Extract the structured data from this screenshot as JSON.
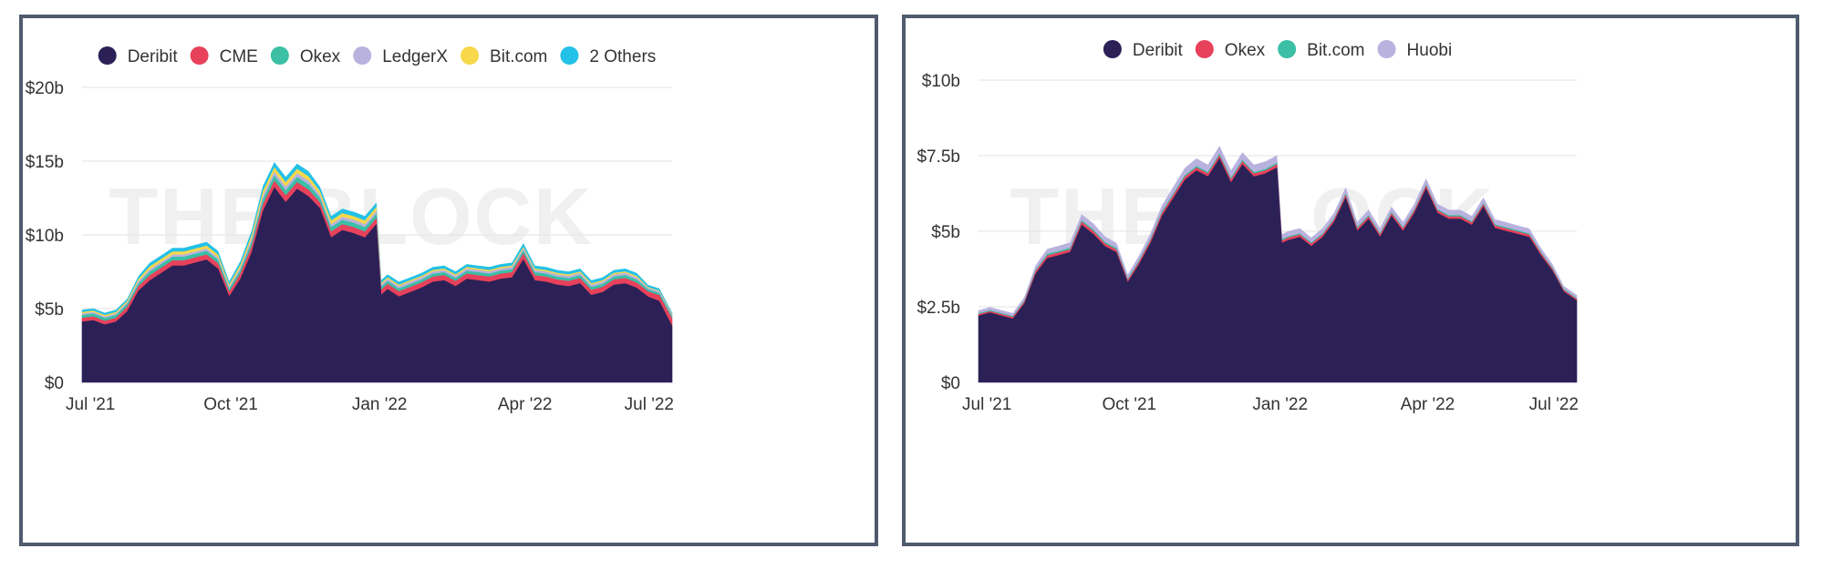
{
  "watermark": "THE BLOCK",
  "chart_data": [
    {
      "type": "area",
      "stacked": true,
      "title": "",
      "xlabel": "",
      "ylabel": "",
      "x_tick_labels": [
        "Jul '21",
        "Oct '21",
        "Jan '22",
        "Apr '22",
        "Jul '22"
      ],
      "x_tick_days": [
        0,
        92,
        184,
        274,
        365
      ],
      "y_tick_labels": [
        "$0",
        "$5b",
        "$10b",
        "$15b",
        "$20b"
      ],
      "y_tick_values": [
        0,
        5,
        10,
        15,
        20
      ],
      "ylim": [
        0,
        20
      ],
      "y_unit": "$ billions",
      "grid": true,
      "legend_position": "top-center",
      "x_days": [
        0,
        7,
        14,
        21,
        28,
        35,
        42,
        49,
        56,
        63,
        70,
        77,
        84,
        91,
        98,
        105,
        112,
        119,
        126,
        133,
        140,
        147,
        154,
        161,
        168,
        175,
        182,
        185,
        189,
        196,
        203,
        210,
        217,
        224,
        231,
        238,
        245,
        252,
        259,
        266,
        273,
        280,
        287,
        294,
        301,
        308,
        315,
        322,
        329,
        336,
        343,
        350,
        357,
        365
      ],
      "series": [
        {
          "name": "Deribit",
          "color": "#2b2157",
          "values": [
            4.1,
            4.2,
            3.9,
            4.1,
            4.8,
            6.2,
            6.9,
            7.4,
            7.9,
            7.9,
            8.1,
            8.3,
            7.7,
            5.8,
            7.0,
            8.8,
            11.6,
            13.2,
            12.2,
            13.1,
            12.6,
            11.8,
            9.8,
            10.3,
            10.1,
            9.8,
            10.7,
            5.9,
            6.3,
            5.8,
            6.1,
            6.4,
            6.8,
            6.9,
            6.5,
            7.0,
            6.9,
            6.8,
            7.0,
            7.1,
            8.3,
            6.9,
            6.8,
            6.6,
            6.5,
            6.7,
            5.9,
            6.1,
            6.6,
            6.7,
            6.4,
            5.8,
            5.5,
            3.8
          ]
        },
        {
          "name": "CME",
          "color": "#e8415b",
          "values": [
            0.25,
            0.25,
            0.25,
            0.25,
            0.3,
            0.3,
            0.35,
            0.35,
            0.35,
            0.35,
            0.35,
            0.35,
            0.35,
            0.3,
            0.35,
            0.4,
            0.45,
            0.45,
            0.45,
            0.45,
            0.45,
            0.4,
            0.4,
            0.4,
            0.4,
            0.4,
            0.4,
            0.35,
            0.35,
            0.35,
            0.35,
            0.35,
            0.35,
            0.35,
            0.35,
            0.35,
            0.35,
            0.35,
            0.35,
            0.35,
            0.4,
            0.35,
            0.35,
            0.35,
            0.35,
            0.35,
            0.35,
            0.35,
            0.35,
            0.35,
            0.35,
            0.35,
            0.4,
            0.5
          ]
        },
        {
          "name": "Okex",
          "color": "#3bbfa5",
          "values": [
            0.2,
            0.2,
            0.2,
            0.2,
            0.2,
            0.2,
            0.25,
            0.25,
            0.25,
            0.25,
            0.25,
            0.25,
            0.25,
            0.2,
            0.25,
            0.3,
            0.35,
            0.35,
            0.35,
            0.35,
            0.35,
            0.3,
            0.3,
            0.3,
            0.3,
            0.3,
            0.3,
            0.2,
            0.2,
            0.2,
            0.2,
            0.2,
            0.2,
            0.2,
            0.2,
            0.2,
            0.2,
            0.2,
            0.2,
            0.2,
            0.2,
            0.2,
            0.2,
            0.2,
            0.2,
            0.2,
            0.2,
            0.2,
            0.2,
            0.2,
            0.2,
            0.15,
            0.15,
            0.15
          ]
        },
        {
          "name": "LedgerX",
          "color": "#b9b2df",
          "values": [
            0.1,
            0.1,
            0.1,
            0.1,
            0.1,
            0.15,
            0.15,
            0.15,
            0.15,
            0.15,
            0.15,
            0.15,
            0.15,
            0.15,
            0.15,
            0.2,
            0.25,
            0.25,
            0.25,
            0.25,
            0.25,
            0.2,
            0.2,
            0.2,
            0.2,
            0.2,
            0.2,
            0.15,
            0.15,
            0.15,
            0.15,
            0.15,
            0.15,
            0.15,
            0.15,
            0.15,
            0.15,
            0.15,
            0.15,
            0.15,
            0.15,
            0.15,
            0.15,
            0.15,
            0.15,
            0.15,
            0.15,
            0.15,
            0.15,
            0.15,
            0.15,
            0.1,
            0.1,
            0.1
          ]
        },
        {
          "name": "Bit.com",
          "color": "#f6d84a",
          "values": [
            0.1,
            0.1,
            0.1,
            0.1,
            0.1,
            0.15,
            0.2,
            0.2,
            0.2,
            0.2,
            0.2,
            0.2,
            0.2,
            0.15,
            0.2,
            0.25,
            0.3,
            0.3,
            0.3,
            0.3,
            0.3,
            0.25,
            0.25,
            0.25,
            0.25,
            0.25,
            0.25,
            0.1,
            0.1,
            0.1,
            0.1,
            0.1,
            0.1,
            0.1,
            0.1,
            0.1,
            0.1,
            0.1,
            0.1,
            0.1,
            0.1,
            0.1,
            0.1,
            0.1,
            0.1,
            0.1,
            0.1,
            0.1,
            0.1,
            0.1,
            0.1,
            0.05,
            0.05,
            0.05
          ]
        },
        {
          "name": "2 Others",
          "color": "#23c1e8",
          "values": [
            0.15,
            0.15,
            0.15,
            0.15,
            0.15,
            0.2,
            0.25,
            0.25,
            0.25,
            0.25,
            0.25,
            0.25,
            0.25,
            0.2,
            0.25,
            0.3,
            0.35,
            0.35,
            0.35,
            0.35,
            0.35,
            0.3,
            0.3,
            0.3,
            0.3,
            0.3,
            0.3,
            0.2,
            0.2,
            0.2,
            0.2,
            0.2,
            0.2,
            0.2,
            0.2,
            0.2,
            0.2,
            0.2,
            0.2,
            0.2,
            0.25,
            0.2,
            0.2,
            0.2,
            0.2,
            0.2,
            0.2,
            0.2,
            0.2,
            0.2,
            0.2,
            0.15,
            0.15,
            0.1
          ]
        }
      ]
    },
    {
      "type": "area",
      "stacked": true,
      "title": "",
      "xlabel": "",
      "ylabel": "",
      "x_tick_labels": [
        "Jul '21",
        "Oct '21",
        "Jan '22",
        "Apr '22",
        "Jul '22"
      ],
      "x_tick_days": [
        0,
        92,
        184,
        274,
        365
      ],
      "y_tick_labels": [
        "$0",
        "$2.5b",
        "$5b",
        "$7.5b",
        "$10b"
      ],
      "y_tick_values": [
        0,
        2.5,
        5,
        7.5,
        10
      ],
      "ylim": [
        0,
        10
      ],
      "y_unit": "$ billions",
      "grid": true,
      "legend_position": "top-center",
      "x_days": [
        0,
        7,
        14,
        21,
        28,
        35,
        42,
        49,
        56,
        63,
        70,
        77,
        84,
        91,
        98,
        105,
        112,
        119,
        126,
        133,
        140,
        147,
        154,
        161,
        168,
        175,
        182,
        185,
        189,
        196,
        203,
        210,
        217,
        224,
        231,
        238,
        245,
        252,
        259,
        266,
        273,
        280,
        287,
        294,
        301,
        308,
        315,
        322,
        329,
        336,
        343,
        350,
        357,
        365
      ],
      "series": [
        {
          "name": "Deribit",
          "color": "#2b2157",
          "values": [
            2.2,
            2.3,
            2.2,
            2.1,
            2.6,
            3.6,
            4.1,
            4.2,
            4.3,
            5.2,
            4.9,
            4.5,
            4.3,
            3.3,
            3.9,
            4.6,
            5.5,
            6.1,
            6.7,
            7.0,
            6.8,
            7.4,
            6.6,
            7.2,
            6.8,
            6.9,
            7.1,
            4.6,
            4.7,
            4.8,
            4.5,
            4.8,
            5.3,
            6.1,
            5.0,
            5.4,
            4.8,
            5.5,
            5.0,
            5.6,
            6.4,
            5.6,
            5.4,
            5.4,
            5.2,
            5.8,
            5.1,
            5.0,
            4.9,
            4.8,
            4.2,
            3.7,
            3.0,
            2.7
          ]
        },
        {
          "name": "Okex",
          "color": "#e8415b",
          "values": [
            0.05,
            0.05,
            0.05,
            0.05,
            0.06,
            0.08,
            0.09,
            0.09,
            0.09,
            0.1,
            0.1,
            0.09,
            0.09,
            0.07,
            0.08,
            0.09,
            0.1,
            0.1,
            0.1,
            0.1,
            0.1,
            0.1,
            0.1,
            0.1,
            0.1,
            0.1,
            0.1,
            0.08,
            0.08,
            0.08,
            0.08,
            0.08,
            0.08,
            0.09,
            0.08,
            0.08,
            0.08,
            0.08,
            0.08,
            0.08,
            0.09,
            0.08,
            0.08,
            0.08,
            0.08,
            0.08,
            0.08,
            0.08,
            0.08,
            0.08,
            0.07,
            0.06,
            0.05,
            0.05
          ]
        },
        {
          "name": "Bit.com",
          "color": "#3bbfa5",
          "values": [
            0.03,
            0.03,
            0.03,
            0.03,
            0.03,
            0.04,
            0.05,
            0.05,
            0.05,
            0.05,
            0.05,
            0.05,
            0.05,
            0.04,
            0.04,
            0.05,
            0.05,
            0.05,
            0.05,
            0.05,
            0.05,
            0.05,
            0.05,
            0.05,
            0.05,
            0.05,
            0.05,
            0.04,
            0.04,
            0.04,
            0.04,
            0.04,
            0.04,
            0.04,
            0.04,
            0.04,
            0.04,
            0.04,
            0.04,
            0.04,
            0.04,
            0.04,
            0.04,
            0.04,
            0.04,
            0.04,
            0.04,
            0.04,
            0.04,
            0.04,
            0.03,
            0.03,
            0.03,
            0.03
          ]
        },
        {
          "name": "Huobi",
          "color": "#b9b2df",
          "values": [
            0.1,
            0.1,
            0.1,
            0.1,
            0.12,
            0.15,
            0.17,
            0.17,
            0.18,
            0.2,
            0.2,
            0.18,
            0.17,
            0.14,
            0.16,
            0.18,
            0.2,
            0.22,
            0.24,
            0.25,
            0.24,
            0.26,
            0.24,
            0.25,
            0.24,
            0.25,
            0.25,
            0.17,
            0.17,
            0.17,
            0.16,
            0.17,
            0.18,
            0.2,
            0.17,
            0.18,
            0.16,
            0.18,
            0.17,
            0.18,
            0.2,
            0.18,
            0.18,
            0.18,
            0.17,
            0.18,
            0.17,
            0.17,
            0.16,
            0.16,
            0.14,
            0.12,
            0.1,
            0.1
          ]
        }
      ]
    }
  ]
}
